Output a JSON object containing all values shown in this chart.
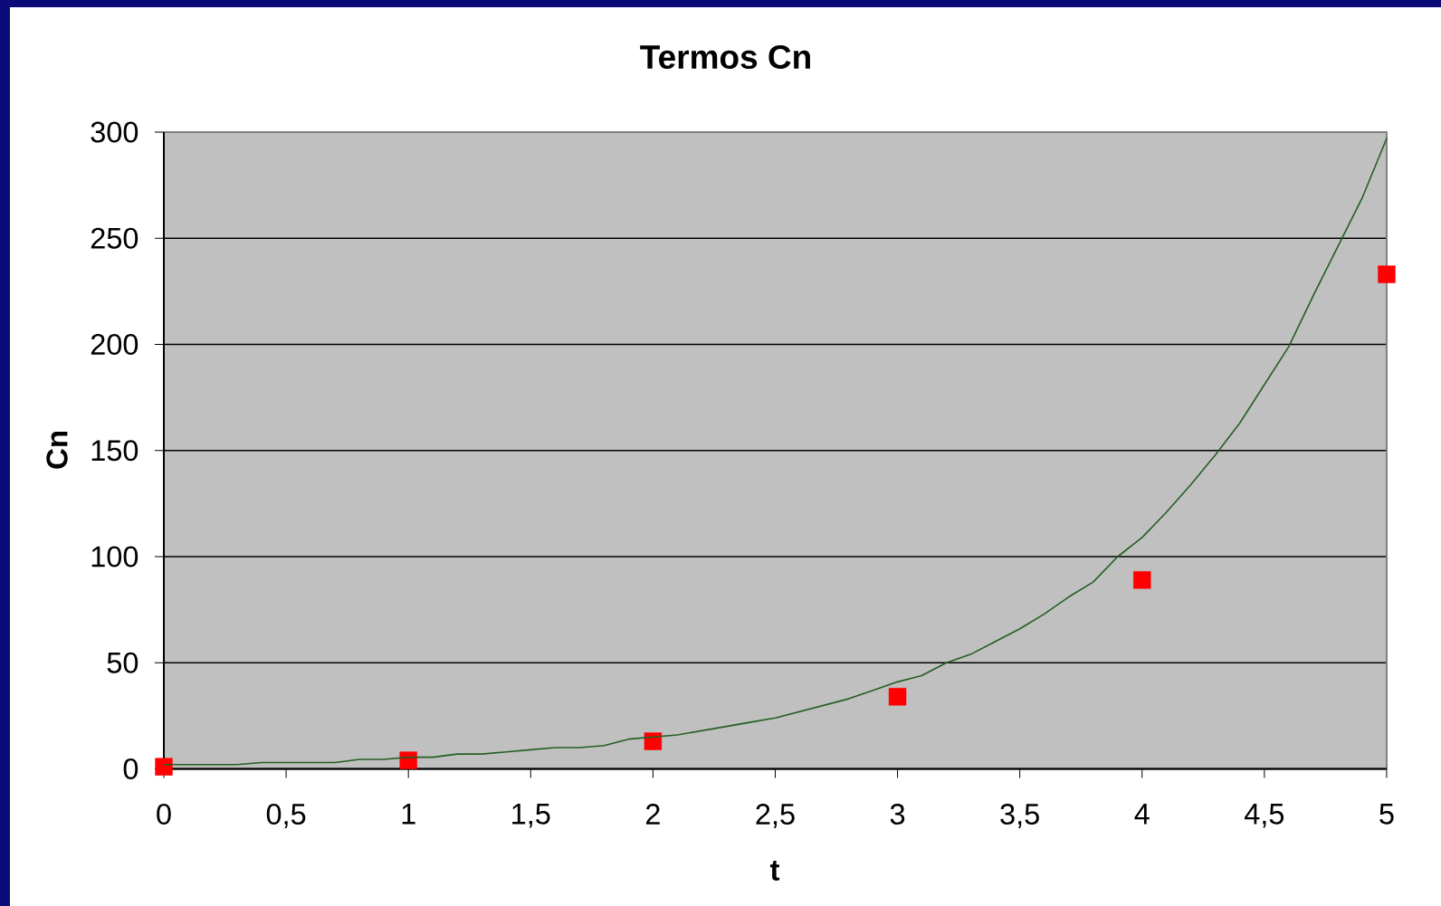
{
  "chart_data": {
    "type": "line",
    "title": "Termos Cn",
    "xlabel": "t",
    "ylabel": "Cn",
    "xlim": [
      0,
      5
    ],
    "ylim": [
      0,
      300
    ],
    "xticks": [
      0,
      {
        "value": 0.5,
        "label": "0,5"
      },
      1,
      {
        "value": 1.5,
        "label": "1,5"
      },
      2,
      {
        "value": 2.5,
        "label": "2,5"
      },
      3,
      {
        "value": 3.5,
        "label": "3,5"
      },
      4,
      {
        "value": 4.5,
        "label": "4,5"
      },
      5
    ],
    "yticks": [
      0,
      50,
      100,
      150,
      200,
      250,
      300
    ],
    "grid": "y",
    "series": [
      {
        "color": "#235f23",
        "marker": "none",
        "x": [
          0,
          0.1,
          0.2,
          0.3,
          0.4,
          0.5,
          0.6,
          0.7,
          0.8,
          0.9,
          1,
          1.1,
          1.2,
          1.3,
          1.4,
          1.5,
          1.6,
          1.7,
          1.8,
          1.9,
          2,
          2.1,
          2.2,
          2.3,
          2.4,
          2.5,
          2.6,
          2.7,
          2.8,
          2.9,
          3,
          3.1,
          3.2,
          3.3,
          3.4,
          3.5,
          3.6,
          3.7,
          3.8,
          3.9,
          4,
          4.1,
          4.2,
          4.3,
          4.4,
          4.5,
          4.6,
          4.7,
          4.8,
          4.9,
          5
        ],
        "values": [
          2,
          2,
          2,
          2,
          3,
          3,
          3,
          3,
          4.5,
          4.5,
          5.5,
          5.5,
          7,
          7,
          8,
          9,
          10,
          10,
          11,
          14,
          15,
          16,
          18,
          20,
          22,
          24,
          27,
          30,
          33,
          37,
          41,
          44,
          50,
          54,
          60,
          66,
          73,
          81,
          88,
          100,
          109,
          121,
          134,
          148,
          163,
          181,
          199,
          223,
          246,
          269,
          297
        ]
      },
      {
        "type": "scatter",
        "color": "#ff0000",
        "marker": "square",
        "x": [
          0,
          1,
          2,
          3,
          4,
          5
        ],
        "values": [
          1,
          4,
          13,
          34,
          89,
          233
        ]
      }
    ]
  }
}
